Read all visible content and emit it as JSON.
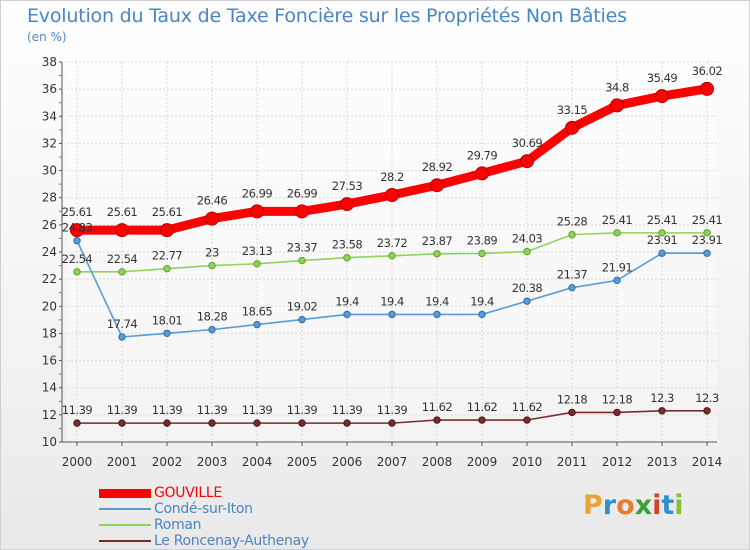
{
  "title": "Evolution du Taux de Taxe Foncière sur les Propriétés Non Bâties",
  "unit": "(en %)",
  "brand": {
    "text": "Proxiti",
    "letters": [
      "P",
      "r",
      "o",
      "x",
      "i",
      "t",
      "i"
    ],
    "letter_colors": [
      "#e8a43a",
      "#2f8fd0",
      "#e57f2f",
      "#3aa13a",
      "#d6402e",
      "#2f8fd0",
      "#8bbd3a"
    ]
  },
  "chart_data": {
    "type": "line",
    "x": [
      "2000",
      "2001",
      "2002",
      "2003",
      "2004",
      "2005",
      "2006",
      "2007",
      "2008",
      "2009",
      "2010",
      "2011",
      "2012",
      "2013",
      "2014"
    ],
    "ylim": [
      10,
      38
    ],
    "yticks": [
      "10",
      "12",
      "14",
      "16",
      "18",
      "20",
      "22",
      "24",
      "26",
      "28",
      "30",
      "32",
      "34",
      "36",
      "38"
    ],
    "grid": true,
    "legend_position": "bottom-left",
    "series": [
      {
        "name": "GOUVILLE",
        "color": "#ff0000",
        "values": [
          25.61,
          25.61,
          25.61,
          26.46,
          26.99,
          26.99,
          27.53,
          28.2,
          28.92,
          29.79,
          30.69,
          33.15,
          34.8,
          35.49,
          36.02
        ],
        "labels": [
          "25.61",
          "25.61",
          "25.61",
          "26.46",
          "26.99",
          "26.99",
          "27.53",
          "28.2",
          "28.92",
          "29.79",
          "30.69",
          "33.15",
          "34.8",
          "35.49",
          "36.02"
        ]
      },
      {
        "name": "Condé-sur-Iton",
        "color": "#5b9bd5",
        "values": [
          24.83,
          17.74,
          18.01,
          18.28,
          18.65,
          19.02,
          19.4,
          19.4,
          19.4,
          19.4,
          20.38,
          21.37,
          21.91,
          23.91,
          23.91
        ],
        "labels": [
          "24.83",
          "17.74",
          "18.01",
          "18.28",
          "18.65",
          "19.02",
          "19.4",
          "19.4",
          "19.4",
          "19.4",
          "20.38",
          "21.37",
          "21.91",
          "23.91",
          "23.91"
        ]
      },
      {
        "name": "Roman",
        "color": "#8ed35a",
        "values": [
          22.54,
          22.54,
          22.77,
          23,
          23.13,
          23.37,
          23.58,
          23.72,
          23.87,
          23.89,
          24.03,
          25.28,
          25.41,
          25.41,
          25.41
        ],
        "labels": [
          "22.54",
          "22.54",
          "22.77",
          "23",
          "23.13",
          "23.37",
          "23.58",
          "23.72",
          "23.87",
          "23.89",
          "24.03",
          "25.28",
          "25.41",
          "25.41",
          "25.41"
        ]
      },
      {
        "name": "Le Roncenay-Authenay",
        "color": "#7b2b2b",
        "values": [
          11.39,
          11.39,
          11.39,
          11.39,
          11.39,
          11.39,
          11.39,
          11.39,
          11.62,
          11.62,
          11.62,
          12.18,
          12.18,
          12.3,
          12.3
        ],
        "labels": [
          "11.39",
          "11.39",
          "11.39",
          "11.39",
          "11.39",
          "11.39",
          "11.39",
          "11.39",
          "11.62",
          "11.62",
          "11.62",
          "12.18",
          "12.18",
          "12.3",
          "12.3"
        ]
      }
    ]
  }
}
